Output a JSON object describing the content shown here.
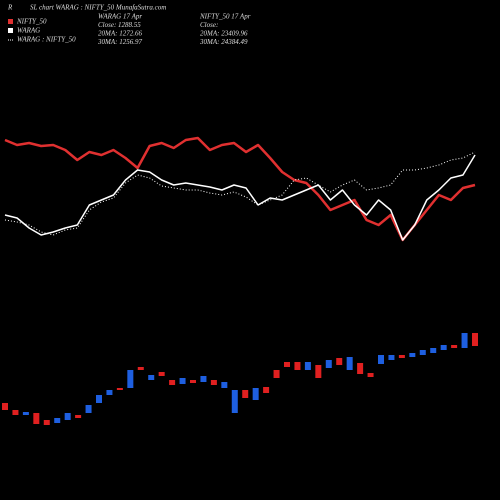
{
  "chart_data": {
    "type": "line",
    "corner_label": "R",
    "title": "SL chart WARAG : NIFTY_50 MunafaSutra.com",
    "info": [
      [
        "WARAG 17 Apr",
        "Close: 1288.55",
        "20MA: 1272.66",
        "30MA: 1256.97"
      ],
      [
        "NIFTY_50 17 Apr",
        "Close:",
        "20MA: 23409.96",
        "30MA: 24384.49"
      ]
    ],
    "ylim": [
      0,
      500
    ],
    "series": [
      {
        "name": "NIFTY_50",
        "color": "#e03030",
        "width": 2.5,
        "values": [
          360,
          355,
          357,
          354,
          355,
          350,
          340,
          348,
          345,
          350,
          342,
          332,
          354,
          357,
          352,
          360,
          362,
          350,
          355,
          357,
          348,
          355,
          342,
          328,
          320,
          317,
          305,
          290,
          295,
          300,
          280,
          275,
          285,
          260,
          275,
          290,
          305,
          300,
          312,
          315
        ]
      },
      {
        "name": "WARAG",
        "color": "#ffffff",
        "width": 1.5,
        "values": [
          285,
          282,
          272,
          265,
          268,
          272,
          275,
          295,
          300,
          305,
          320,
          330,
          328,
          320,
          315,
          317,
          315,
          313,
          310,
          315,
          312,
          295,
          302,
          300,
          305,
          310,
          315,
          300,
          310,
          295,
          285,
          300,
          290,
          260,
          275,
          300,
          310,
          322,
          325,
          345
        ]
      },
      {
        "name": "WARAG : NIFTY_50",
        "color": "#ffffff",
        "width": 1,
        "dashed": true,
        "values": [
          280,
          278,
          275,
          268,
          265,
          270,
          272,
          290,
          298,
          302,
          317,
          325,
          322,
          314,
          312,
          310,
          310,
          307,
          305,
          308,
          303,
          295,
          300,
          305,
          320,
          322,
          315,
          308,
          315,
          320,
          310,
          312,
          315,
          330,
          330,
          332,
          335,
          340,
          342,
          348
        ]
      }
    ],
    "candles": {
      "up_color": "#1e5fe0",
      "down_color": "#e02020",
      "open": [
        97,
        90,
        85,
        87,
        80,
        77,
        80,
        85,
        87,
        97,
        105,
        112,
        112,
        133,
        120,
        128,
        120,
        116,
        120,
        118,
        120,
        112,
        87,
        110,
        100,
        113,
        130,
        138,
        138,
        130,
        135,
        132,
        142,
        130,
        137,
        127,
        136,
        140,
        145,
        143,
        145,
        147,
        150,
        155,
        152,
        167
      ],
      "close": [
        90,
        85,
        88,
        76,
        75,
        82,
        87,
        82,
        95,
        105,
        110,
        110,
        130,
        130,
        125,
        124,
        115,
        122,
        117,
        124,
        115,
        118,
        110,
        102,
        112,
        107,
        122,
        133,
        130,
        138,
        122,
        140,
        135,
        143,
        126,
        123,
        145,
        145,
        142,
        147,
        150,
        152,
        155,
        152,
        167,
        154
      ]
    }
  }
}
